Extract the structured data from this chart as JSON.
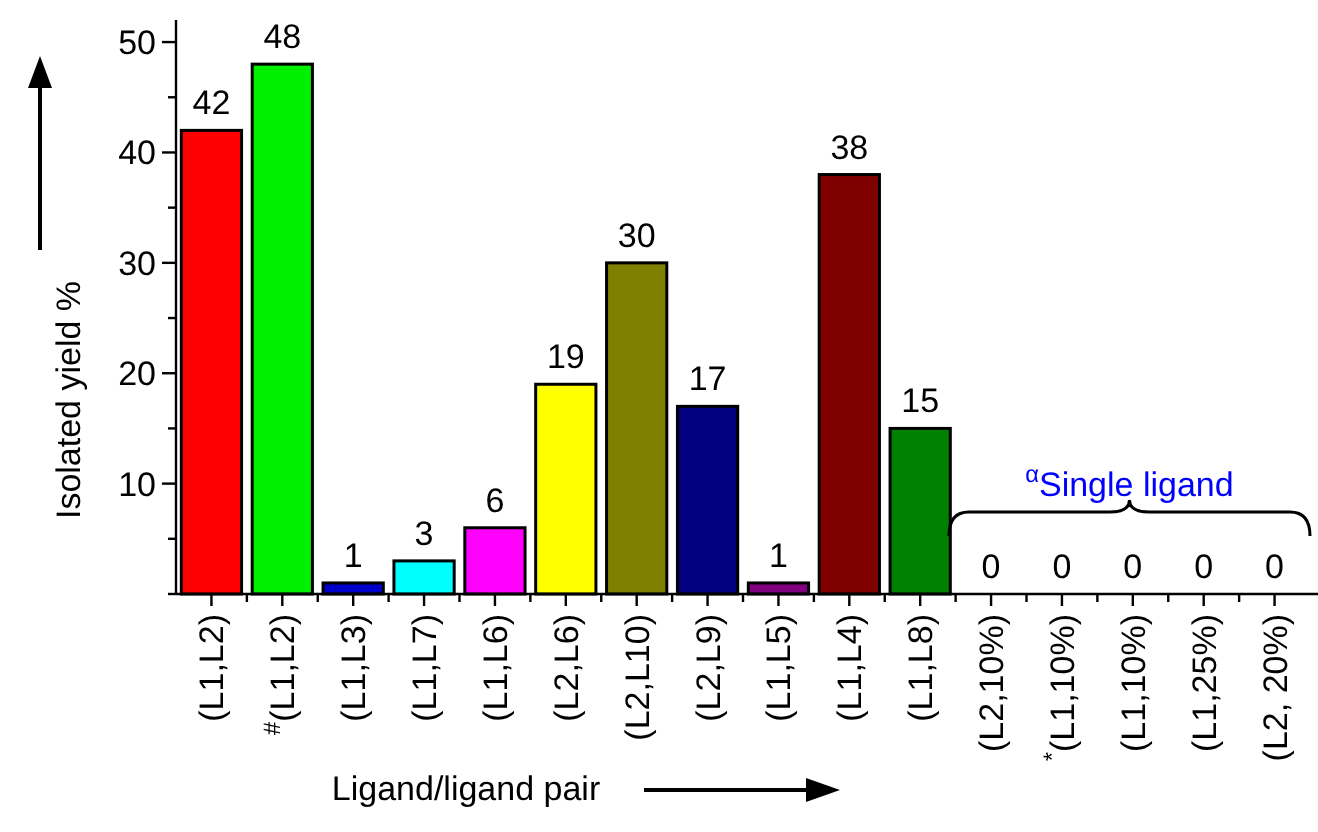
{
  "chart_data": {
    "type": "bar",
    "xlabel": "Ligand/ligand pair",
    "ylabel": "Isolated yield %",
    "categories": [
      "(L1,L2)",
      "$^{#}$(L1,L2)",
      "(L1,L3)",
      "(L1,L7)",
      "(L1,L6)",
      "(L2,L6)",
      "(L2,L10)",
      "(L2,L9)",
      "(L1,L5)",
      "(L1,L4)",
      "(L1,L8)",
      "(L2,10%)",
      "$^{*}$(L1,10%)",
      "(L1,10%)",
      "(L1,25%)",
      "(L2, 20%)"
    ],
    "values": [
      42,
      48,
      1,
      3,
      6,
      19,
      30,
      17,
      1,
      38,
      15,
      0,
      0,
      0,
      0,
      0
    ],
    "colors": [
      "#ff0000",
      "#00ee00",
      "#0000cc",
      "#00ffff",
      "#ff00ff",
      "#ffff00",
      "#808000",
      "#000080",
      "#800080",
      "#800000",
      "#008000",
      "#808080",
      "#808080",
      "#808080",
      "#808080",
      "#808080"
    ],
    "ylim": [
      0,
      52
    ],
    "yticks": [
      {
        "value": 0,
        "label": null
      },
      {
        "value": 5,
        "label": null
      },
      10,
      {
        "value": 15,
        "label": null
      },
      20,
      {
        "value": 25,
        "label": null
      },
      30,
      {
        "value": 35,
        "label": null
      },
      40,
      {
        "value": 45,
        "label": null
      },
      50
    ],
    "data_labels": true,
    "annotations": [
      "$^{α}$Single ligand"
    ]
  }
}
